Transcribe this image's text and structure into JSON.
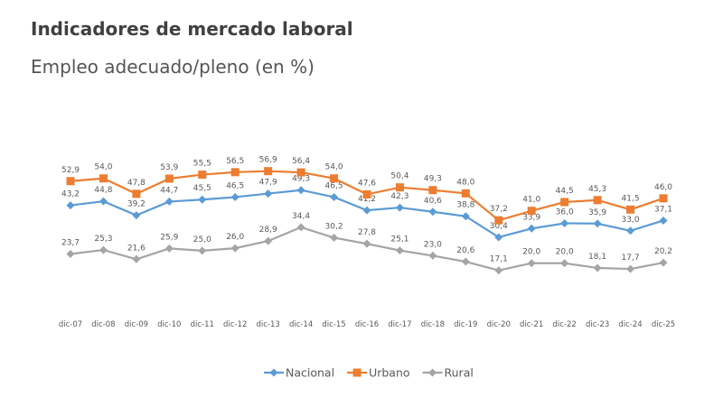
{
  "header": {
    "title": "Indicadores de mercado laboral",
    "subtitle": "Empleo adecuado/pleno (en %)"
  },
  "chart_data": {
    "type": "line",
    "title": "Empleo adecuado/pleno (en %)",
    "xlabel": "",
    "ylabel": "",
    "ylim": [
      0,
      70
    ],
    "grid": false,
    "legend_position": "bottom",
    "categories": [
      "dic-07",
      "dic-08",
      "dic-09",
      "dic-10",
      "dic-11",
      "dic-12",
      "dic-13",
      "dic-14",
      "dic-15",
      "dic-16",
      "dic-17",
      "dic-18",
      "dic-19",
      "dic-20",
      "dic-21",
      "dic-22",
      "dic-23",
      "dic-24",
      "dic-25"
    ],
    "series": [
      {
        "name": "Nacional",
        "color": "#5b9bd5",
        "marker": "diamond",
        "values": [
          43.2,
          44.8,
          39.2,
          44.7,
          45.5,
          46.5,
          47.9,
          49.3,
          46.5,
          41.2,
          42.3,
          40.6,
          38.8,
          30.4,
          33.9,
          36.0,
          35.9,
          33.0,
          37.1
        ],
        "labels": [
          "43,2",
          "44,8",
          "39,2",
          "44,7",
          "45,5",
          "46,5",
          "47,9",
          "49,3",
          "46,5",
          "41,2",
          "42,3",
          "40,6",
          "38,8",
          "30,4",
          "33,9",
          "36,0",
          "35,9",
          "33,0",
          "37,1"
        ]
      },
      {
        "name": "Urbano",
        "color": "#ed7d31",
        "marker": "square",
        "values": [
          52.9,
          54.0,
          47.8,
          53.9,
          55.5,
          56.5,
          56.9,
          56.4,
          54.0,
          47.6,
          50.4,
          49.3,
          48.0,
          37.2,
          41.0,
          44.5,
          45.3,
          41.5,
          46.0
        ],
        "labels": [
          "52,9",
          "54,0",
          "47,8",
          "53,9",
          "55,5",
          "56,5",
          "56,9",
          "56,4",
          "54,0",
          "47,6",
          "50,4",
          "49,3",
          "48,0",
          "37,2",
          "41,0",
          "44,5",
          "45,3",
          "41,5",
          "46,0"
        ]
      },
      {
        "name": "Rural",
        "color": "#a5a5a5",
        "marker": "diamond",
        "values": [
          23.7,
          25.3,
          21.6,
          25.9,
          25.0,
          26.0,
          28.9,
          34.4,
          30.2,
          27.8,
          25.1,
          23.0,
          20.6,
          17.1,
          20.0,
          20.0,
          18.1,
          17.7,
          20.2
        ],
        "labels": [
          "23,7",
          "25,3",
          "21,6",
          "25,9",
          "25,0",
          "26,0",
          "28,9",
          "34,4",
          "30,2",
          "27,8",
          "25,1",
          "23,0",
          "20,6",
          "17,1",
          "20,0",
          "20,0",
          "18,1",
          "17,7",
          "20,2"
        ]
      }
    ]
  }
}
